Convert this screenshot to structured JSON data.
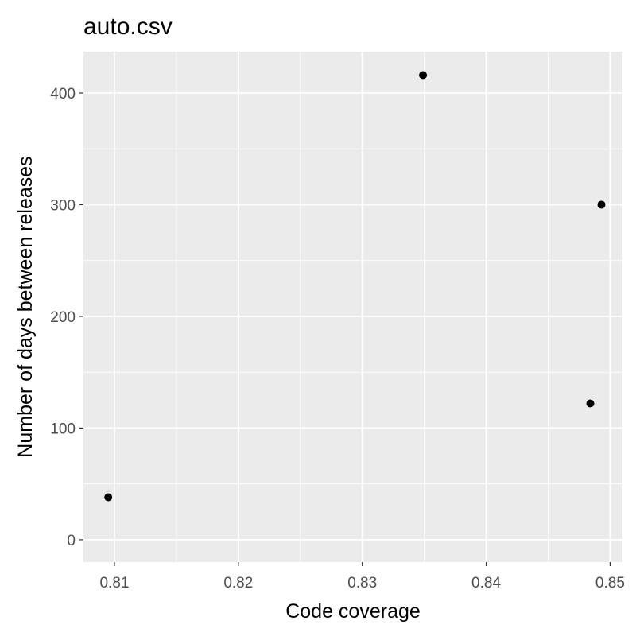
{
  "chart_data": {
    "type": "scatter",
    "title": "auto.csv",
    "xlabel": "Code coverage",
    "ylabel": "Number of days between releases",
    "xlim": [
      0.8075,
      0.851
    ],
    "ylim": [
      -20,
      437
    ],
    "x_ticks": [
      0.81,
      0.82,
      0.83,
      0.84,
      0.85
    ],
    "x_tick_labels": [
      "0.81",
      "0.82",
      "0.83",
      "0.84",
      "0.85"
    ],
    "y_ticks": [
      0,
      100,
      200,
      300,
      400
    ],
    "y_tick_labels": [
      "0",
      "100",
      "200",
      "300",
      "400"
    ],
    "grid": true,
    "panel_color": "#ebebeb",
    "grid_color": "#ffffff",
    "point_color": "#000000",
    "points": [
      {
        "x": 0.8095,
        "y": 38
      },
      {
        "x": 0.8349,
        "y": 416
      },
      {
        "x": 0.8484,
        "y": 122
      },
      {
        "x": 0.8493,
        "y": 300
      }
    ]
  }
}
